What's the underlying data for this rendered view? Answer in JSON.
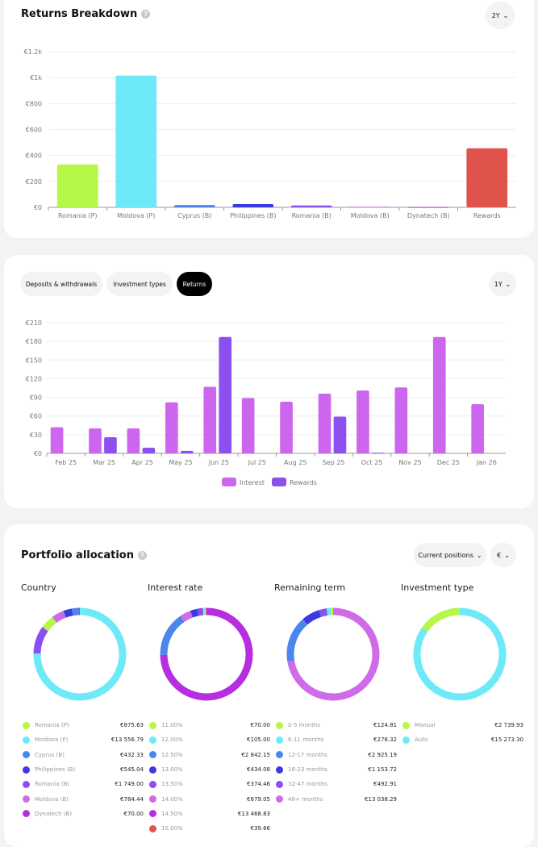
{
  "colors": {
    "green": "#b5f84a",
    "cyan": "#6ee9f8",
    "blue": "#4b86ee",
    "darkblue": "#3a3ae0",
    "purple": "#8b4ef0",
    "pink": "#d06be8",
    "magenta": "#b72ee0",
    "red": "#e0534d"
  },
  "returns_breakdown": {
    "title": "Returns Breakdown",
    "help": "?",
    "period": "2Y",
    "chart_data": {
      "type": "bar",
      "categories": [
        "Romania (P)",
        "Moldova (P)",
        "Cyprus (B)",
        "Philippines (B)",
        "Romania (B)",
        "Moldova (B)",
        "Dynatech (B)",
        "Rewards"
      ],
      "values": [
        330,
        1015,
        18,
        25,
        14,
        5,
        2,
        455
      ],
      "colors": [
        "#b5f84a",
        "#6ee9f8",
        "#4b86ee",
        "#3a3ae0",
        "#8b4ef0",
        "#d06be8",
        "#b72ee0",
        "#e0534d"
      ],
      "yticks": [
        "€0",
        "€200",
        "€400",
        "€600",
        "€800",
        "€1k",
        "€1.2k"
      ],
      "ylim": [
        0,
        1200
      ],
      "grid": true
    }
  },
  "returns_chart": {
    "tabs": [
      {
        "label": "Deposits & withdrawals",
        "active": false
      },
      {
        "label": "Investment types",
        "active": false
      },
      {
        "label": "Returns",
        "active": true
      }
    ],
    "period": "1Y",
    "chart_data": {
      "type": "bar",
      "categories": [
        "Feb 25",
        "Mar 25",
        "Apr 25",
        "May 25",
        "Jun 25",
        "Jul 25",
        "Aug 25",
        "Sep 25",
        "Oct 25",
        "Nov 25",
        "Dec 25",
        "Jan 26"
      ],
      "series": [
        {
          "name": "Interest",
          "color": "#cc66ee",
          "values": [
            42,
            40,
            40,
            82,
            107,
            89,
            83,
            96,
            101,
            106,
            187,
            79
          ]
        },
        {
          "name": "Rewards",
          "color": "#8e4ff0",
          "values": [
            0,
            26,
            9,
            4,
            187,
            0,
            0,
            59,
            1,
            0,
            0,
            0
          ]
        }
      ],
      "yticks": [
        "€0",
        "€30",
        "€60",
        "€90",
        "€120",
        "€150",
        "€180",
        "€210"
      ],
      "ylim": [
        0,
        210
      ],
      "grid": true,
      "legend": "bottom"
    }
  },
  "portfolio": {
    "title": "Portfolio allocation",
    "help": "?",
    "view": "Current positions",
    "currency": "€",
    "chart_data": [
      {
        "type": "pie",
        "title": "Country",
        "items": [
          {
            "label": "Romania (P)",
            "value": "€875.63",
            "amount": 875.63,
            "color": "#b5f84a"
          },
          {
            "label": "Moldova (P)",
            "value": "€13 556.79",
            "amount": 13556.79,
            "color": "#6ee9f8"
          },
          {
            "label": "Cyprus (B)",
            "value": "€432.33",
            "amount": 432.33,
            "color": "#4b86ee"
          },
          {
            "label": "Philippines (B)",
            "value": "€545.04",
            "amount": 545.04,
            "color": "#3a3ae0"
          },
          {
            "label": "Romania (B)",
            "value": "€1 749.00",
            "amount": 1749.0,
            "color": "#8b4ef0"
          },
          {
            "label": "Moldova (B)",
            "value": "€784.44",
            "amount": 784.44,
            "color": "#d06be8"
          },
          {
            "label": "Dynatech (B)",
            "value": "€70.00",
            "amount": 70.0,
            "color": "#b72ee0"
          }
        ]
      },
      {
        "type": "pie",
        "title": "Interest rate",
        "items": [
          {
            "label": "11.00%",
            "value": "€70.00",
            "amount": 70.0,
            "color": "#b5f84a"
          },
          {
            "label": "12.00%",
            "value": "€105.00",
            "amount": 105.0,
            "color": "#6ee9f8"
          },
          {
            "label": "12.50%",
            "value": "€2 842.15",
            "amount": 2842.15,
            "color": "#4b86ee"
          },
          {
            "label": "13.00%",
            "value": "€434.08",
            "amount": 434.08,
            "color": "#3a3ae0"
          },
          {
            "label": "13.50%",
            "value": "€374.46",
            "amount": 374.46,
            "color": "#8b4ef0"
          },
          {
            "label": "14.00%",
            "value": "€679.05",
            "amount": 679.05,
            "color": "#d06be8"
          },
          {
            "label": "14.50%",
            "value": "€13 468.83",
            "amount": 13468.83,
            "color": "#b72ee0"
          },
          {
            "label": "15.00%",
            "value": "€39.66",
            "amount": 39.66,
            "color": "#e0534d"
          }
        ]
      },
      {
        "type": "pie",
        "title": "Remaining term",
        "items": [
          {
            "label": "0-5 months",
            "value": "€124.81",
            "amount": 124.81,
            "color": "#b5f84a"
          },
          {
            "label": "6-11 months",
            "value": "€278.32",
            "amount": 278.32,
            "color": "#6ee9f8"
          },
          {
            "label": "12-17 months",
            "value": "€2 925.19",
            "amount": 2925.19,
            "color": "#4b86ee"
          },
          {
            "label": "18-23 months",
            "value": "€1 153.72",
            "amount": 1153.72,
            "color": "#3a3ae0"
          },
          {
            "label": "32-47 months",
            "value": "€492.91",
            "amount": 492.91,
            "color": "#8b4ef0"
          },
          {
            "label": "48+ months",
            "value": "€13 038.29",
            "amount": 13038.29,
            "color": "#d06be8"
          }
        ]
      },
      {
        "type": "pie",
        "title": "Investment type",
        "items": [
          {
            "label": "Manual",
            "value": "€2 739.93",
            "amount": 2739.93,
            "color": "#b5f84a"
          },
          {
            "label": "Auto",
            "value": "€15 273.30",
            "amount": 15273.3,
            "color": "#6ee9f8"
          }
        ]
      }
    ]
  }
}
